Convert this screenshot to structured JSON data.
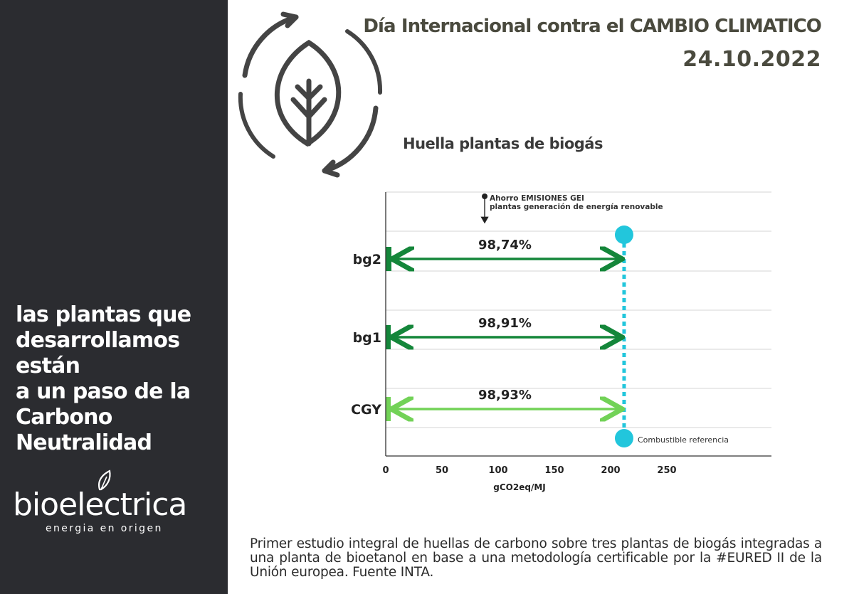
{
  "header": {
    "title": "Día Internacional contra el CAMBIO CLIMATICO",
    "date": "24.10.2022"
  },
  "left_panel": {
    "slogan_lines": [
      "las plantas que",
      "desarrollamos",
      "están",
      "a un paso de la",
      "Carbono",
      "Neutralidad"
    ],
    "brand_name": "bioelectrica",
    "brand_tagline": "energia en origen"
  },
  "icons": {
    "cycle": "leaf-cycle-icon",
    "brand_leaf": "leaf-icon"
  },
  "colors": {
    "panel_bg": "#2b2c30",
    "header_text": "#4a4a3e",
    "dark_green": "#14863a",
    "light_green": "#72d257",
    "reference_cyan": "#22c6dc",
    "grid": "#d6d6d6",
    "axis": "#333333"
  },
  "chart_data": {
    "type": "bar",
    "title": "Huella plantas de biogás",
    "xlabel": "gCO2eq/MJ",
    "ylabel": "",
    "xlim": [
      0,
      340
    ],
    "x_ticks": [
      0,
      50,
      100,
      150,
      200,
      250
    ],
    "grid": true,
    "categories": [
      "bg2",
      "bg1",
      "CGY"
    ],
    "values": [
      2.3,
      2.0,
      2.0
    ],
    "bar_colors": [
      "#14863a",
      "#14863a",
      "#72d257"
    ],
    "savings_labels": [
      "98,74%",
      "98,91%",
      "98,93%"
    ],
    "reference": {
      "label": "Combustible referencia",
      "value": 212
    },
    "annotation": {
      "lines": [
        "Ahorro EMISIONES GEI",
        "plantas generación de energía renovable"
      ],
      "x": 88
    }
  },
  "footnote": "Primer estudio integral de huellas de carbono sobre tres plantas de biogás integradas a una planta de bioetanol en base a una metodología certificable por la #EURED II de la Unión europea. Fuente INTA."
}
